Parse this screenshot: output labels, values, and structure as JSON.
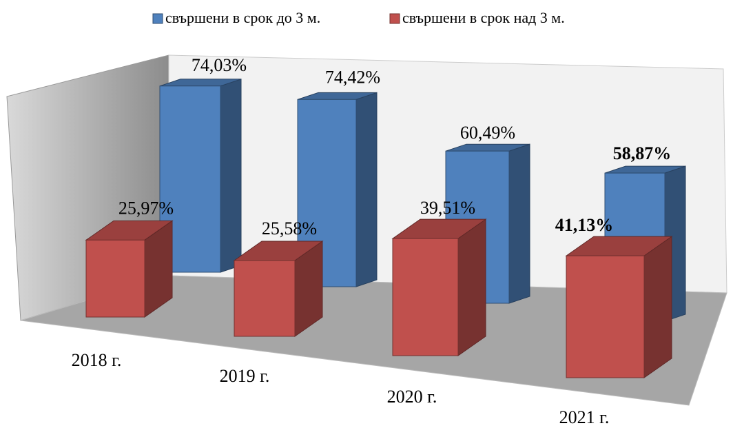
{
  "chart_data": {
    "type": "bar3d",
    "categories": [
      "2018 г.",
      "2019 г.",
      "2020 г.",
      "2021 г."
    ],
    "series": [
      {
        "name": "свършени в срок до 3 м.",
        "color": "#4f81bd",
        "values": [
          74.03,
          74.42,
          60.49,
          58.87
        ],
        "value_labels": [
          "74,03%",
          "74,42%",
          "60,49%",
          "58,87%"
        ]
      },
      {
        "name": "свършени в срок над 3 м.",
        "color": "#c0504d",
        "values": [
          25.97,
          25.58,
          39.51,
          41.13
        ],
        "value_labels": [
          "25,97%",
          "25,58%",
          "39,51%",
          "41,13%"
        ]
      }
    ]
  }
}
